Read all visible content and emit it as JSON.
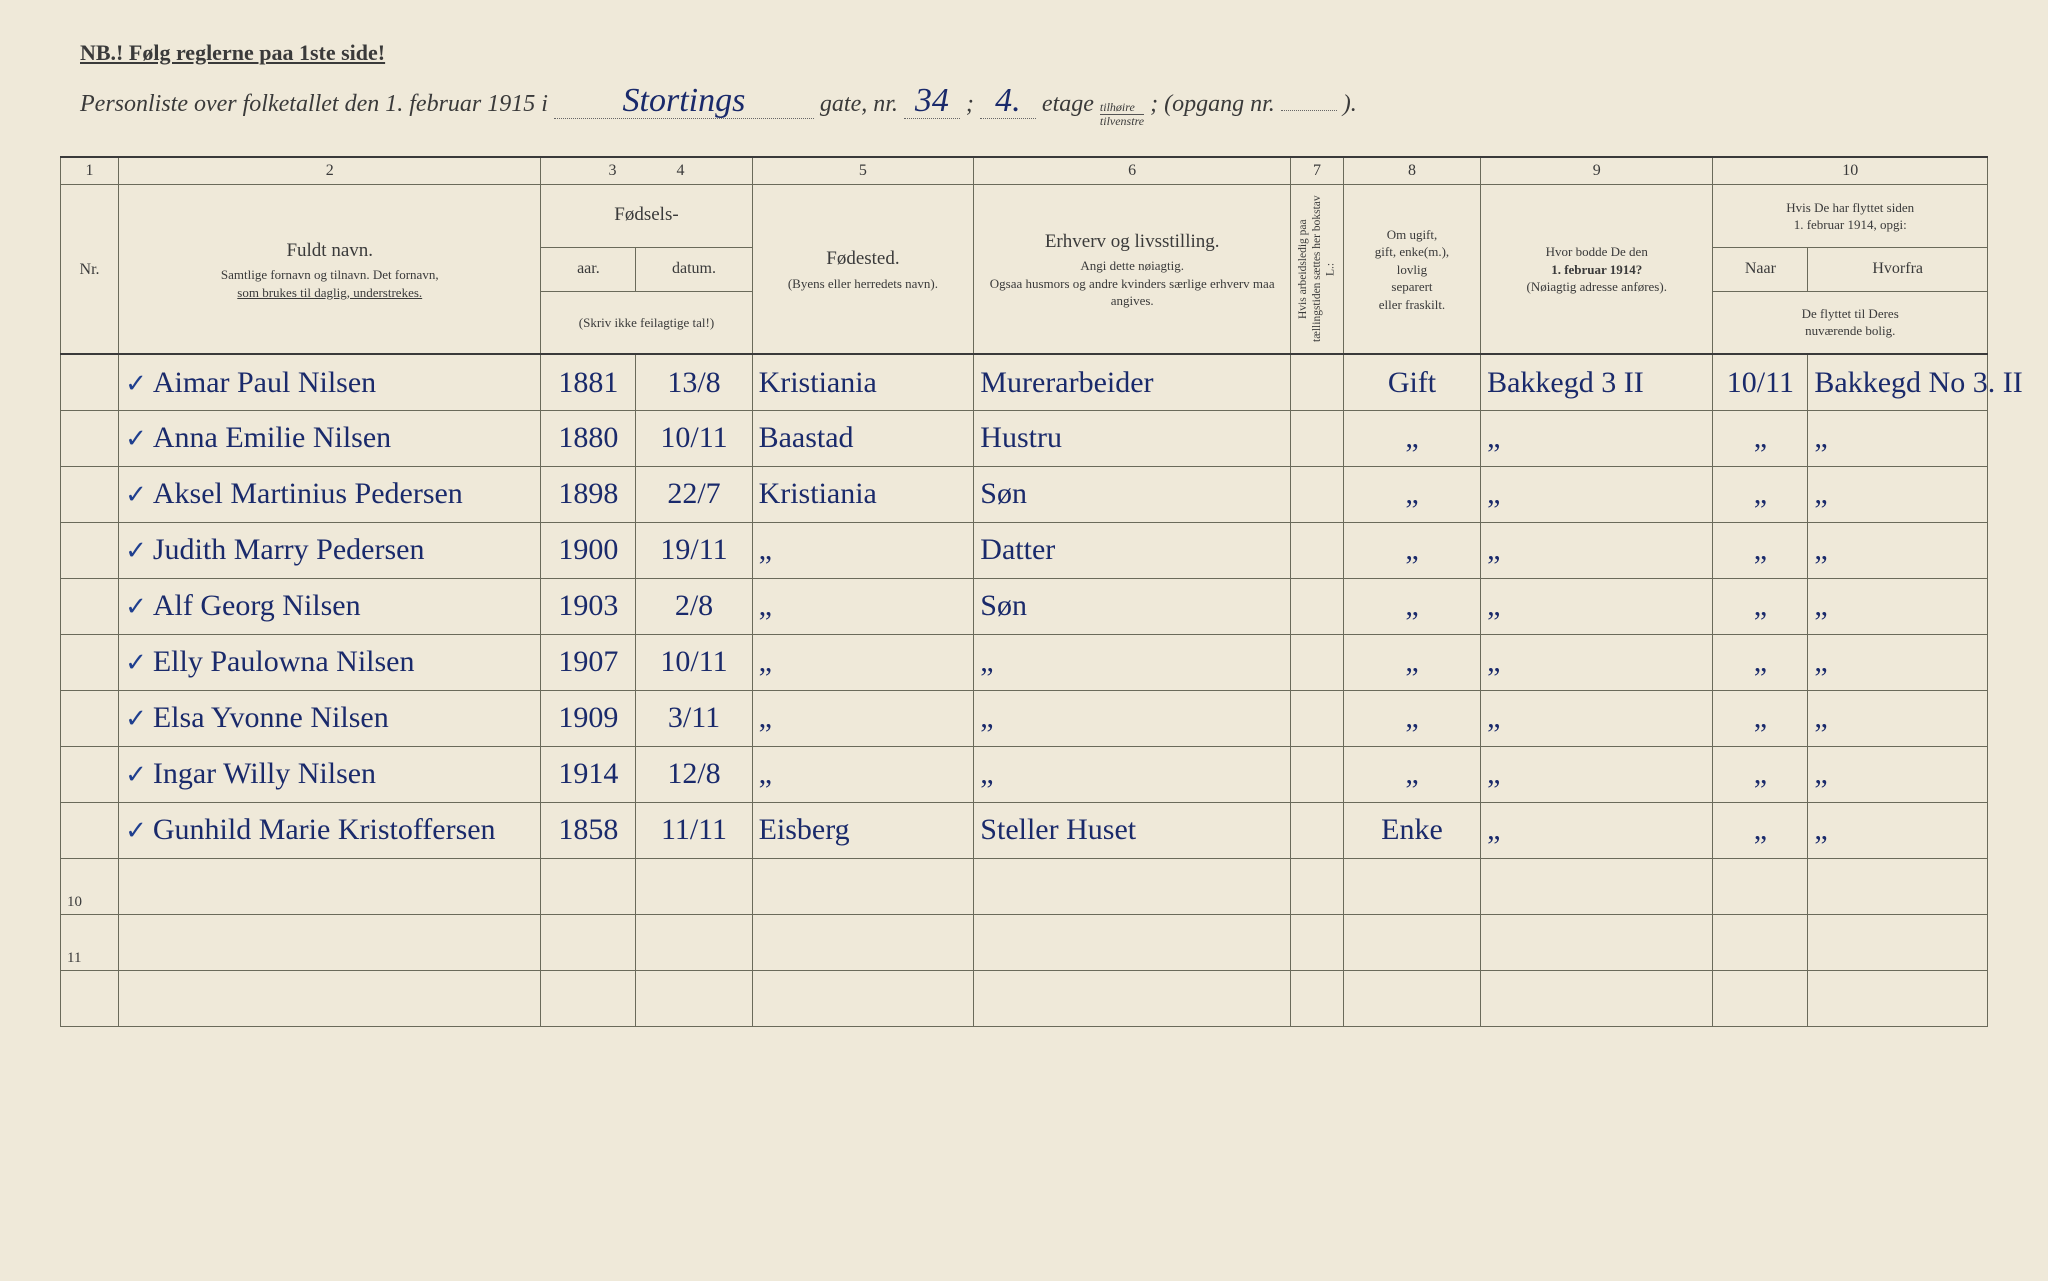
{
  "nb_text": "NB.! Følg reglerne paa 1ste side!",
  "header": {
    "prefix": "Personliste over folketallet den 1. februar 1915 i",
    "street": "Stortings",
    "gate_label": "gate, nr.",
    "gate_nr": "34",
    "semicolon": ";",
    "etage_nr": "4.",
    "etage_label": "etage",
    "stack_top": "tilhøire",
    "stack_bot": "tilvenstre",
    "opgang": "; (opgang nr.",
    "opgang_nr": "",
    "end": ")."
  },
  "colnums": [
    "1",
    "2",
    "3",
    "4",
    "5",
    "6",
    "7",
    "8",
    "9",
    "10"
  ],
  "columns": {
    "nr": "Nr.",
    "name_title": "Fuldt navn.",
    "name_sub1": "Samtlige fornavn og tilnavn.  Det fornavn,",
    "name_sub2": "som brukes til daglig, understrekes.",
    "fodsels": "Fødsels-",
    "aar": "aar.",
    "datum": "datum.",
    "fodsels_sub": "(Skriv ikke feilagtige tal!)",
    "fodested": "Fødested.",
    "fodested_sub": "(Byens eller herredets navn).",
    "erhverv_title": "Erhverv og livsstilling.",
    "erhverv_sub1": "Angi dette nøiagtig.",
    "erhverv_sub2": "Ogsaa husmors og andre kvinders særlige erhverv maa angives.",
    "col7": "Hvis arbeidsledig paa tællingstiden sættes her bokstav L.:",
    "col8_line1": "Om ugift,",
    "col8_line2": "gift, enke(m.),",
    "col8_line3": "lovlig",
    "col8_line4": "separert",
    "col8_line5": "eller fraskilt.",
    "col9_line1": "Hvor bodde De den",
    "col9_line2": "1. februar 1914?",
    "col9_line3": "(Nøiagtig adresse anføres).",
    "col10_top1": "Hvis De har flyttet siden",
    "col10_top2": "1. februar 1914, opgi:",
    "col10_naar": "Naar",
    "col10_hvorfra": "Hvorfra",
    "col10_bot1": "De flyttet til Deres",
    "col10_bot2": "nuværende bolig."
  },
  "widths": {
    "c1": 55,
    "c2": 400,
    "c3": 90,
    "c4": 110,
    "c5": 210,
    "c6": 300,
    "c7": 50,
    "c8": 130,
    "c9": 220,
    "c10a": 90,
    "c10b": 170
  },
  "rows": [
    {
      "nr": "",
      "name": "Aimar Paul Nilsen",
      "aar": "1881",
      "datum": "13/8",
      "sted": "Kristiania",
      "erhverv": "Murerarbeider",
      "l": "",
      "sivil": "Gift",
      "addr": "Bakkegd 3 II",
      "naar": "10/11",
      "hvorfra": "Bakkegd No 3. II"
    },
    {
      "nr": "",
      "name": "Anna Emilie Nilsen",
      "aar": "1880",
      "datum": "10/11",
      "sted": "Baastad",
      "erhverv": "Hustru",
      "l": "",
      "sivil": "„",
      "addr": "„",
      "naar": "„",
      "hvorfra": "„"
    },
    {
      "nr": "",
      "name": "Aksel Martinius Pedersen",
      "aar": "1898",
      "datum": "22/7",
      "sted": "Kristiania",
      "erhverv": "Søn",
      "l": "",
      "sivil": "„",
      "addr": "„",
      "naar": "„",
      "hvorfra": "„"
    },
    {
      "nr": "",
      "name": "Judith Marry Pedersen",
      "aar": "1900",
      "datum": "19/11",
      "sted": "„",
      "erhverv": "Datter",
      "l": "",
      "sivil": "„",
      "addr": "„",
      "naar": "„",
      "hvorfra": "„"
    },
    {
      "nr": "",
      "name": "Alf Georg Nilsen",
      "aar": "1903",
      "datum": "2/8",
      "sted": "„",
      "erhverv": "Søn",
      "l": "",
      "sivil": "„",
      "addr": "„",
      "naar": "„",
      "hvorfra": "„"
    },
    {
      "nr": "",
      "name": "Elly Paulowna Nilsen",
      "aar": "1907",
      "datum": "10/11",
      "sted": "„",
      "erhverv": "„",
      "l": "",
      "sivil": "„",
      "addr": "„",
      "naar": "„",
      "hvorfra": "„"
    },
    {
      "nr": "",
      "name": "Elsa Yvonne Nilsen",
      "aar": "1909",
      "datum": "3/11",
      "sted": "„",
      "erhverv": "„",
      "l": "",
      "sivil": "„",
      "addr": "„",
      "naar": "„",
      "hvorfra": "„"
    },
    {
      "nr": "",
      "name": "Ingar Willy Nilsen",
      "aar": "1914",
      "datum": "12/8",
      "sted": "„",
      "erhverv": "„",
      "l": "",
      "sivil": "„",
      "addr": "„",
      "naar": "„",
      "hvorfra": "„"
    },
    {
      "nr": "",
      "name": "Gunhild Marie Kristoffersen",
      "aar": "1858",
      "datum": "11/11",
      "sted": "Eisberg",
      "erhverv": "Steller Huset",
      "l": "",
      "sivil": "Enke",
      "addr": "„",
      "naar": "„",
      "hvorfra": "„"
    },
    {
      "nr": "10",
      "name": "",
      "aar": "",
      "datum": "",
      "sted": "",
      "erhverv": "",
      "l": "",
      "sivil": "",
      "addr": "",
      "naar": "",
      "hvorfra": ""
    },
    {
      "nr": "11",
      "name": "",
      "aar": "",
      "datum": "",
      "sted": "",
      "erhverv": "",
      "l": "",
      "sivil": "",
      "addr": "",
      "naar": "",
      "hvorfra": ""
    },
    {
      "nr": "",
      "name": "",
      "aar": "",
      "datum": "",
      "sted": "",
      "erhverv": "",
      "l": "",
      "sivil": "",
      "addr": "",
      "naar": "",
      "hvorfra": ""
    }
  ]
}
